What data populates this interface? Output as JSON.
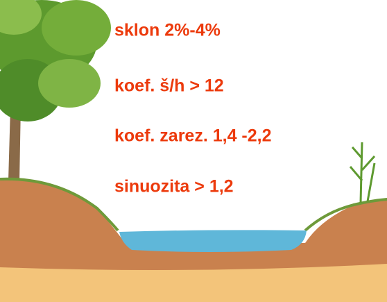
{
  "labels": [
    "sklon 2%-4%",
    "koef. š/h > 12",
    "koef. zarez. 1,4 -2,2",
    "sinuozita > 1,2"
  ]
}
